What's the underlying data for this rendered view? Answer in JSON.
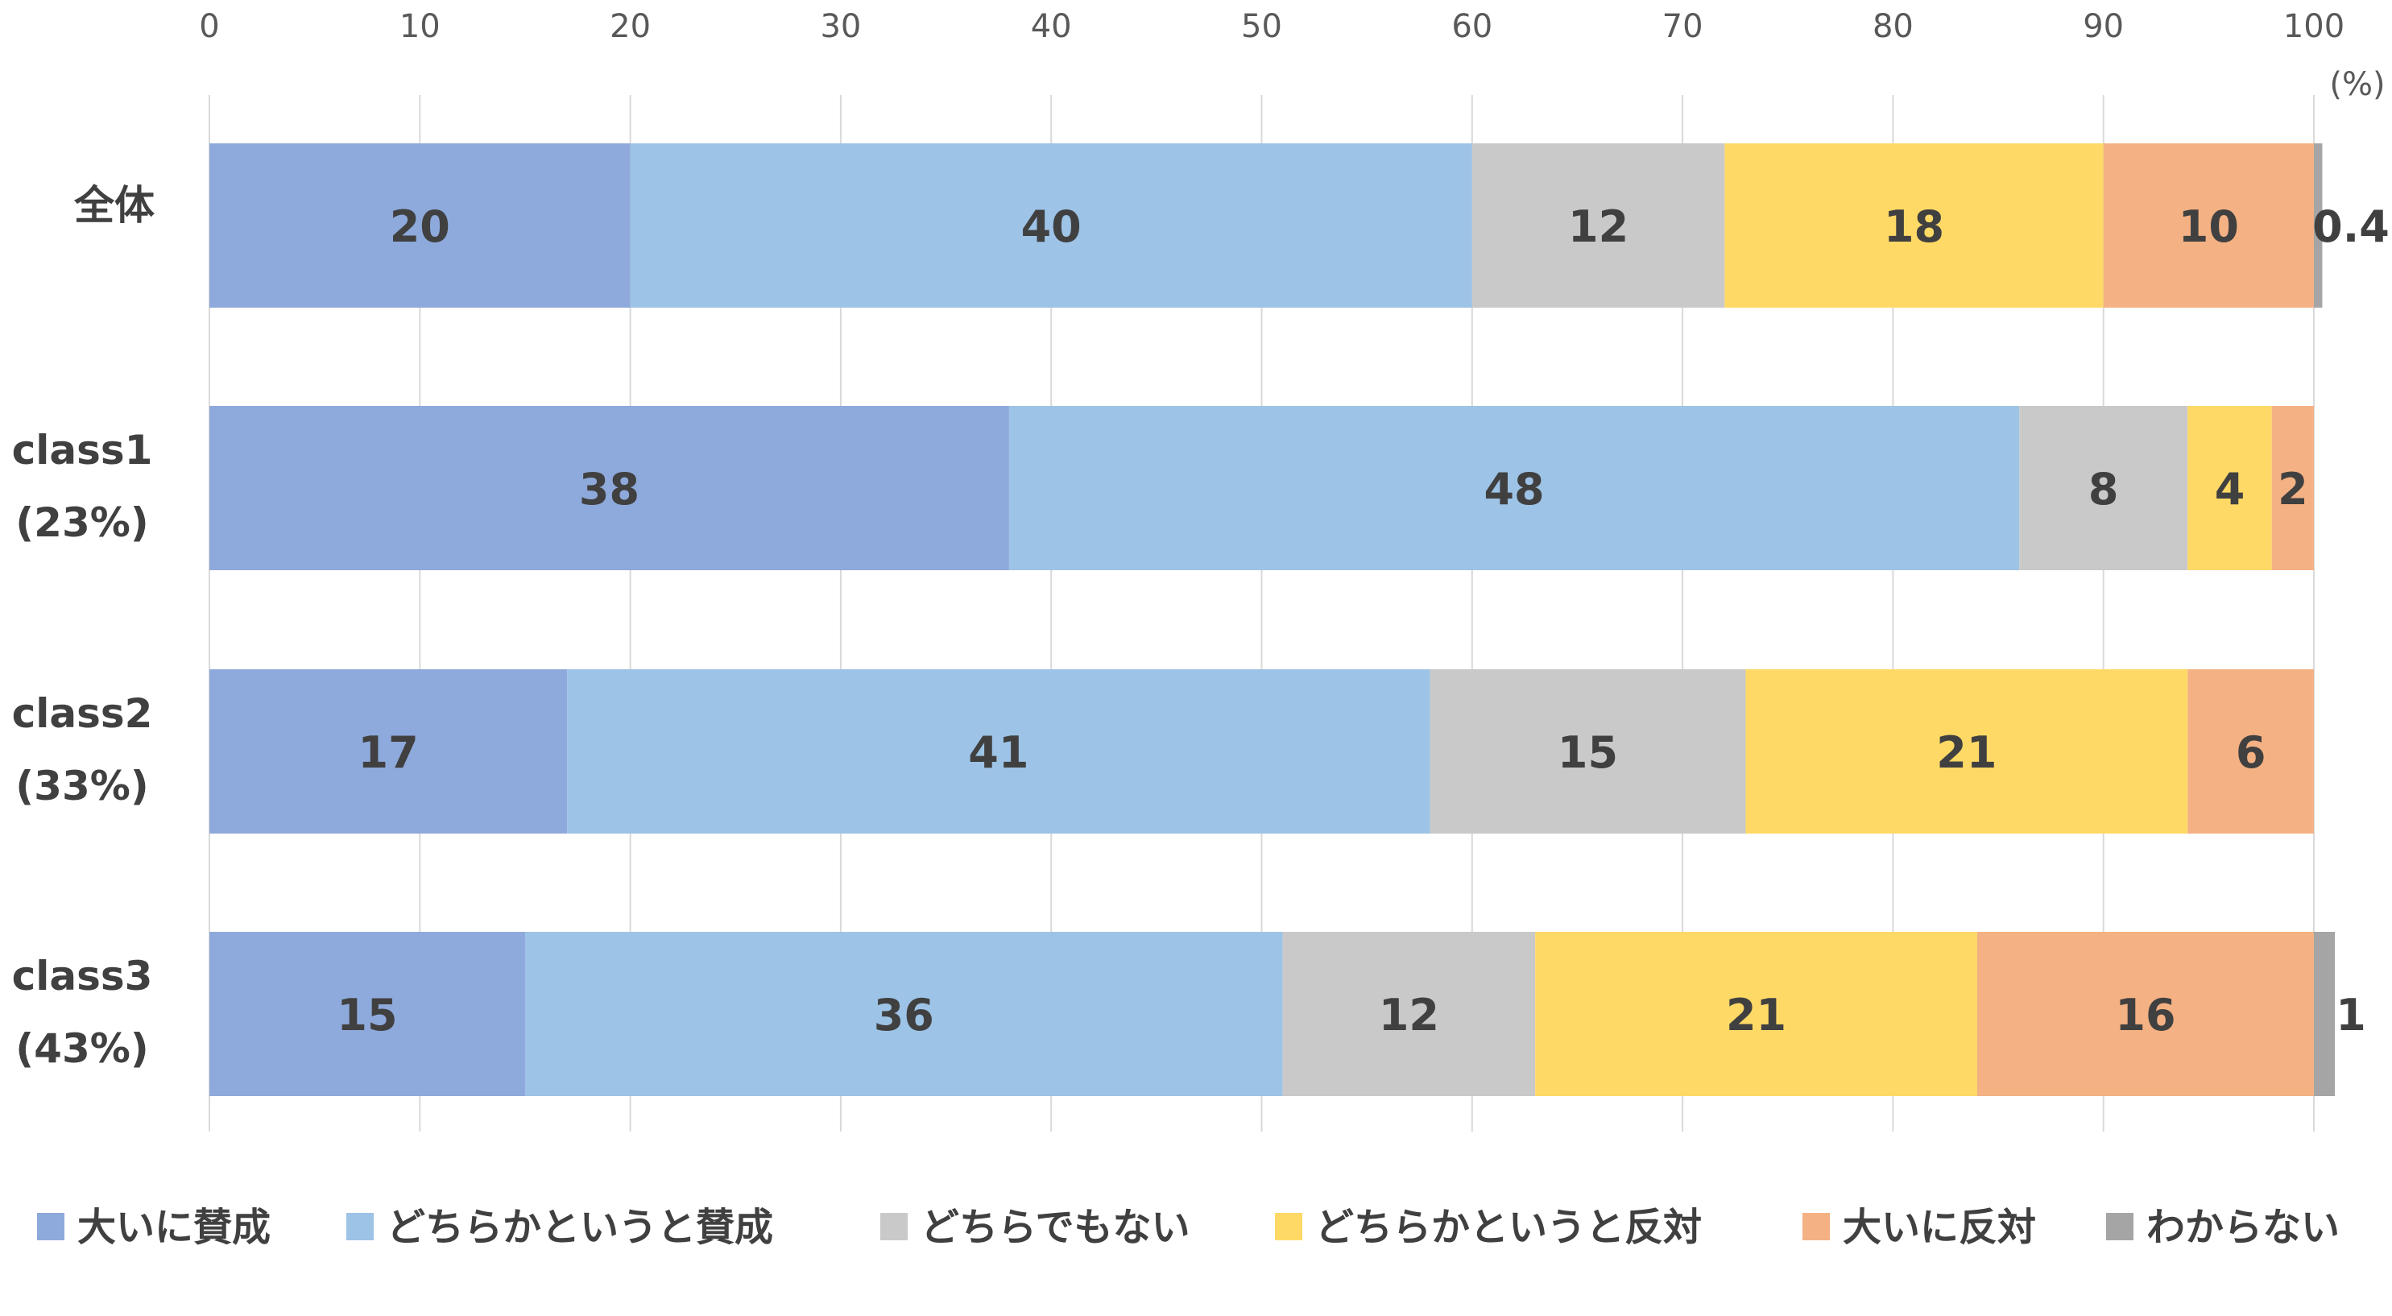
{
  "chart_data": {
    "type": "bar",
    "orientation": "horizontal",
    "stacked": true,
    "xlim": [
      0,
      100
    ],
    "x_ticks": [
      "0",
      "10",
      "20",
      "30",
      "40",
      "50",
      "60",
      "70",
      "80",
      "90",
      "100"
    ],
    "x_axis_position": "top",
    "unit_label": "(%)",
    "grid": true,
    "legend_position": "bottom",
    "categories": [
      {
        "line1": "全体",
        "line2": ""
      },
      {
        "line1": "class1",
        "line2": "(23%)"
      },
      {
        "line1": "class2",
        "line2": "(33%)"
      },
      {
        "line1": "class3",
        "line2": "(43%)"
      }
    ],
    "series": [
      {
        "name": "大いに賛成",
        "color": "#8EA9DB",
        "values": [
          20,
          38,
          17,
          15
        ]
      },
      {
        "name": "どちらかというと賛成",
        "color": "#9DC3E6",
        "values": [
          40,
          48,
          41,
          36
        ]
      },
      {
        "name": "どちらでもない",
        "color": "#C9C9C9",
        "values": [
          12,
          8,
          15,
          12
        ]
      },
      {
        "name": "どちらかというと反対",
        "color": "#FFD966",
        "values": [
          18,
          4,
          21,
          21
        ]
      },
      {
        "name": "大いに反対",
        "color": "#F4B183",
        "values": [
          10,
          2,
          6,
          16
        ]
      },
      {
        "name": "わからない",
        "color": "#A5A5A5",
        "values": [
          0.4,
          null,
          null,
          1
        ]
      }
    ]
  }
}
